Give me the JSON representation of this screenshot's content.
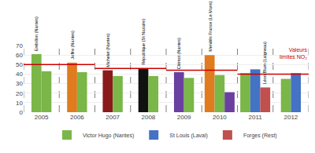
{
  "chart_data": {
    "type": "bar",
    "categories": [
      "2005",
      "2006",
      "2007",
      "2008",
      "2009",
      "2010",
      "2011",
      "2012"
    ],
    "series": [
      {
        "values": [
          61,
          52,
          44,
          46,
          42,
          60,
          41,
          35
        ],
        "colors": [
          "#7ab648",
          "#e07b20",
          "#8b1a1a",
          "#111111",
          "#6b3fa0",
          "#e07b20",
          "#7ab648",
          "#7ab648"
        ],
        "annotations": [
          "Erébillon (Nantes)",
          "Joffre (Nantes)",
          "Michelet (Nantes)",
          "République (St Nazaire)",
          "Clémot (Nantes)",
          "Mendès France (Le Mans)",
          null,
          null
        ]
      },
      {
        "values": [
          43,
          42,
          38,
          38,
          36,
          39,
          45,
          41
        ],
        "colors": [
          "#7ab648",
          "#7ab648",
          "#7ab648",
          "#7ab648",
          "#7ab648",
          "#7ab648",
          "#4472c4",
          "#4472c4"
        ],
        "annotations": [
          null,
          null,
          null,
          null,
          null,
          null,
          null,
          null
        ]
      },
      {
        "values": [
          null,
          null,
          null,
          null,
          null,
          21,
          26,
          null
        ],
        "colors": [
          null,
          null,
          null,
          null,
          null,
          "#6b3fa0",
          "#c0504d",
          null
        ],
        "annotations": [
          null,
          null,
          null,
          null,
          null,
          null,
          "Léon Blum (Laigneau)",
          null
        ]
      }
    ],
    "limits": [
      {
        "from": "2005",
        "to": "2006",
        "value": 50
      },
      {
        "from": "2007",
        "to": "2008",
        "value": 46
      },
      {
        "from": "2009",
        "to": "2010",
        "value": 44
      },
      {
        "from": "2011",
        "to": "2012",
        "value": 40
      }
    ],
    "limit_color": "#cc0000",
    "annotation": {
      "text": "Valeurs\nlimites NO₂",
      "color": "#cc0000"
    },
    "legend_items": [
      {
        "name": "Victor Hugo (Nantes)",
        "color": "#7ab648"
      },
      {
        "name": "St Louis (Laval)",
        "color": "#4472c4"
      },
      {
        "name": "Forges (Rest)",
        "color": "#c0504d"
      }
    ],
    "legend": "bottom",
    "ylim": [
      0,
      70
    ],
    "yticks": [
      0,
      10,
      20,
      30,
      40,
      50,
      60,
      70
    ],
    "grid": true
  }
}
